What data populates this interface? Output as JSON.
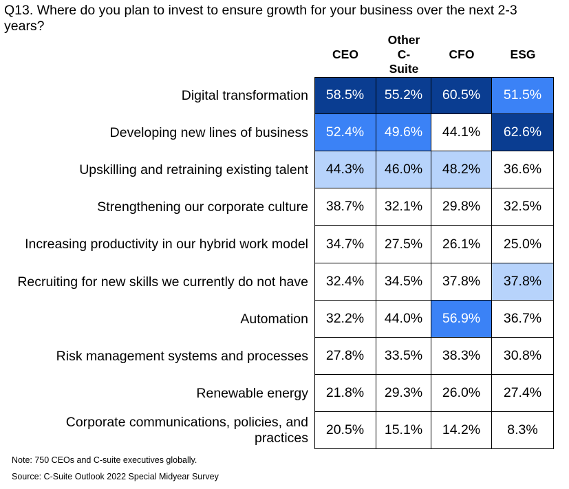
{
  "title": "Q13. Where do you plan to invest to ensure growth for your business over the next 2-3 years?",
  "note": "Note: 750 CEOs and C-suite executives globally.",
  "source": "Source: C-Suite Outlook 2022 Special Midyear Survey",
  "colors": {
    "high": "#0a3d91",
    "mid": "#3b82f6",
    "low": "#b7d3fb",
    "none": "#ffffff"
  },
  "chart_data": {
    "type": "table",
    "columns": [
      "CEO",
      "Other\nC-\nSuite",
      "CFO",
      "ESG"
    ],
    "rows": [
      {
        "label": "Digital transformation",
        "values": [
          "58.5%",
          "55.2%",
          "60.5%",
          "51.5%"
        ],
        "shade": [
          "high",
          "high",
          "high",
          "mid"
        ]
      },
      {
        "label": "Developing new lines of business",
        "values": [
          "52.4%",
          "49.6%",
          "44.1%",
          "62.6%"
        ],
        "shade": [
          "mid",
          "mid",
          "none",
          "high"
        ]
      },
      {
        "label": "Upskilling and retraining existing talent",
        "values": [
          "44.3%",
          "46.0%",
          "48.2%",
          "36.6%"
        ],
        "shade": [
          "low",
          "low",
          "low",
          "none"
        ]
      },
      {
        "label": "Strengthening our corporate culture",
        "values": [
          "38.7%",
          "32.1%",
          "29.8%",
          "32.5%"
        ],
        "shade": [
          "none",
          "none",
          "none",
          "none"
        ]
      },
      {
        "label": "Increasing productivity in our hybrid work model",
        "values": [
          "34.7%",
          "27.5%",
          "26.1%",
          "25.0%"
        ],
        "shade": [
          "none",
          "none",
          "none",
          "none"
        ]
      },
      {
        "label": "Recruiting for new skills we currently do not have",
        "values": [
          "32.4%",
          "34.5%",
          "37.8%",
          "37.8%"
        ],
        "shade": [
          "none",
          "none",
          "none",
          "low"
        ]
      },
      {
        "label": "Automation",
        "values": [
          "32.2%",
          "44.0%",
          "56.9%",
          "36.7%"
        ],
        "shade": [
          "none",
          "none",
          "mid",
          "none"
        ]
      },
      {
        "label": "Risk management systems and processes",
        "values": [
          "27.8%",
          "33.5%",
          "38.3%",
          "30.8%"
        ],
        "shade": [
          "none",
          "none",
          "none",
          "none"
        ]
      },
      {
        "label": "Renewable energy",
        "values": [
          "21.8%",
          "29.3%",
          "26.0%",
          "27.4%"
        ],
        "shade": [
          "none",
          "none",
          "none",
          "none"
        ]
      },
      {
        "label": "Corporate communications, policies, and practices",
        "values": [
          "20.5%",
          "15.1%",
          "14.2%",
          "8.3%"
        ],
        "shade": [
          "none",
          "none",
          "none",
          "none"
        ]
      }
    ]
  }
}
